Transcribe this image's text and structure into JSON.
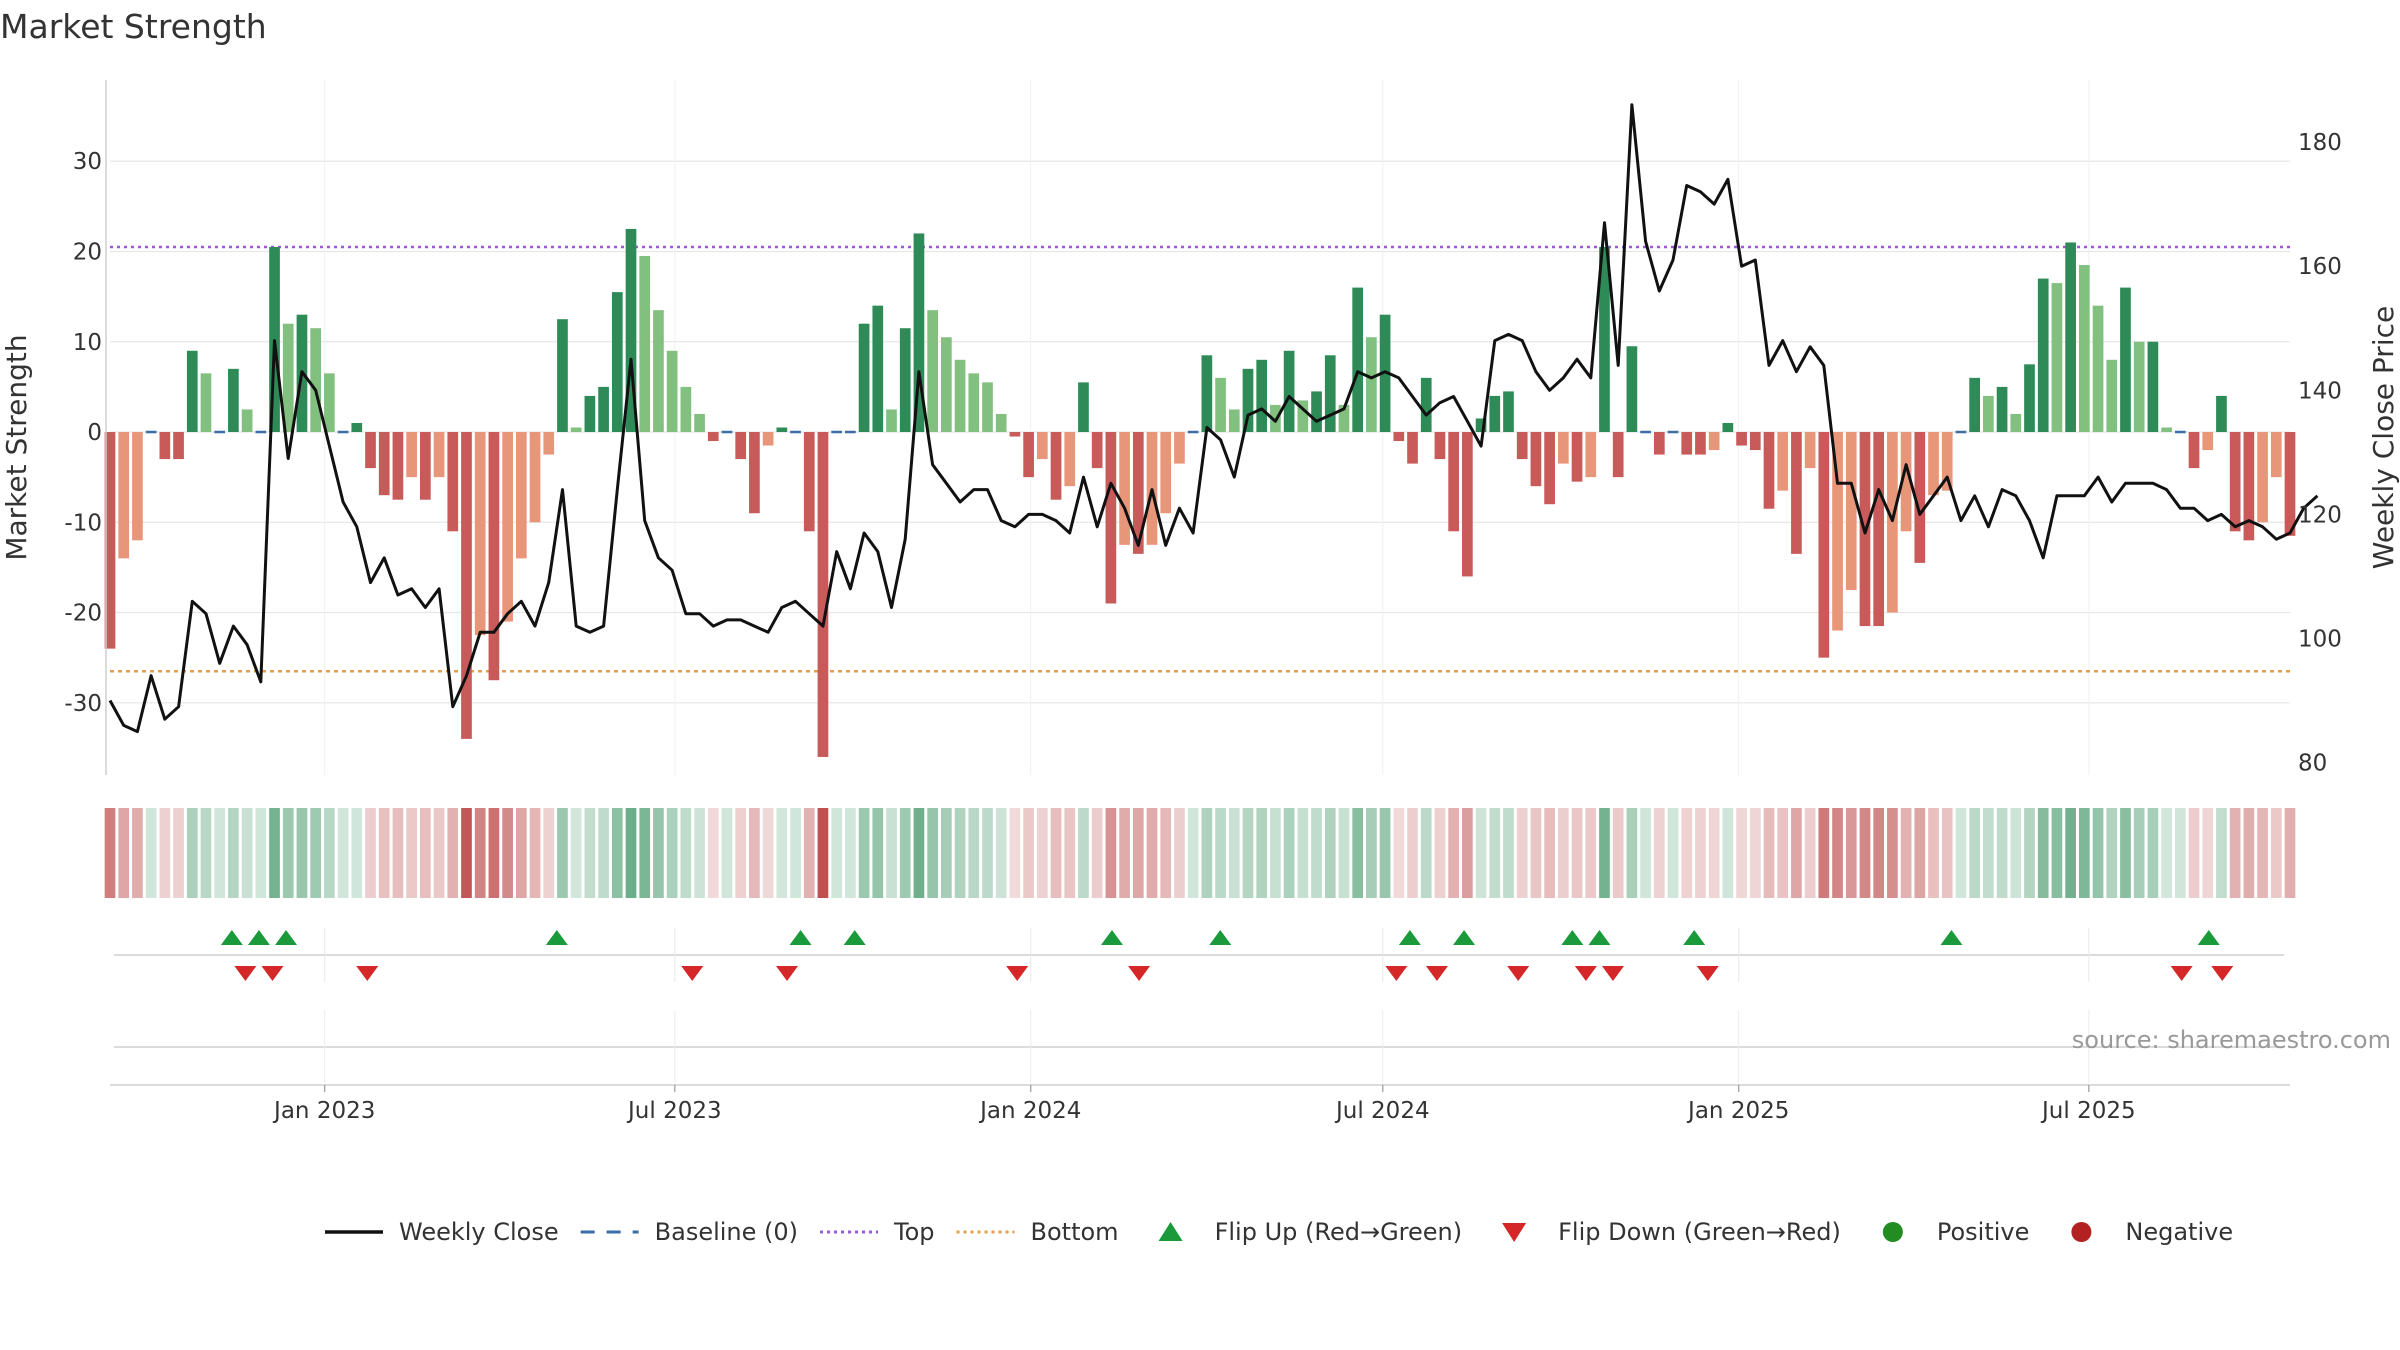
{
  "title": "Market Strength",
  "source": "source: sharemaestro.com",
  "chart_data": {
    "type": "bar",
    "title": "Market Strength",
    "ylabel_left": "Market Strength",
    "ylabel_right": "Weekly Close Price",
    "ylim_left": [
      -38,
      39
    ],
    "ylim_right": [
      78,
      190
    ],
    "yticks_left": [
      30,
      20,
      10,
      0,
      -10,
      -20,
      -30
    ],
    "yticks_right": [
      180,
      160,
      140,
      120,
      100,
      80
    ],
    "top_line": 20.5,
    "bottom_line": -26.5,
    "grid": "horizontal",
    "legend_position": "bottom",
    "x_range": [
      "2022-09-12",
      "2025-10-13"
    ],
    "x_ticks": [
      {
        "date": "2023-01-01",
        "label": "Jan 2023"
      },
      {
        "date": "2023-07-01",
        "label": "Jul 2023"
      },
      {
        "date": "2024-01-01",
        "label": "Jan 2024"
      },
      {
        "date": "2024-07-01",
        "label": "Jul 2024"
      },
      {
        "date": "2025-01-01",
        "label": "Jan 2025"
      },
      {
        "date": "2025-07-01",
        "label": "Jul 2025"
      }
    ],
    "colors": {
      "strong_pos": "#2e8b57",
      "weak_pos": "#82c07f",
      "strong_neg": "#c85a5a",
      "weak_neg": "#e8967a",
      "baseline": "#3a6ea5",
      "top": "#9b59d6",
      "bottom": "#e0a050",
      "close": "#111111",
      "flip_up": "#1a9a3a",
      "flip_down": "#d62728",
      "positive": "#228b22",
      "negative": "#b22222"
    },
    "strength": [
      -24,
      -14,
      -12,
      0,
      -3,
      -3,
      9,
      6.5,
      0,
      7,
      2.5,
      0,
      20.5,
      12,
      13,
      11.5,
      6.5,
      0,
      1,
      -4,
      -7,
      -7.5,
      -5,
      -7.5,
      -5,
      -11,
      -34,
      -22.5,
      -27.5,
      -21,
      -14,
      -10,
      -2.5,
      12.5,
      0.5,
      4,
      5,
      15.5,
      22.5,
      19.5,
      13.5,
      9,
      5,
      2,
      -1,
      0,
      -3,
      -9,
      -1.5,
      0.5,
      0,
      -11,
      -36,
      0,
      0,
      12,
      14,
      2.5,
      11.5,
      22,
      13.5,
      10.5,
      8,
      6.5,
      5.5,
      2,
      -0.5,
      -5,
      -3,
      -7.5,
      -6,
      5.5,
      -4,
      -19,
      -12.5,
      -13.5,
      -12.5,
      -9,
      -3.5,
      0,
      8.5,
      6,
      2.5,
      7,
      8,
      3,
      9,
      3.5,
      4.5,
      8.5,
      3,
      16,
      10.5,
      13,
      -1,
      -3.5,
      6,
      -3,
      -11,
      -16,
      1.5,
      4,
      4.5,
      -3,
      -6,
      -8,
      -3.5,
      -5.5,
      -5,
      20.5,
      -5,
      9.5,
      0,
      -2.5,
      0,
      -2.5,
      -2.5,
      -2,
      1,
      -1.5,
      -2,
      -8.5,
      -6.5,
      -13.5,
      -4,
      -25,
      -22,
      -17.5,
      -21.5,
      -21.5,
      -20,
      -11,
      -14.5,
      -7,
      -6.5,
      0,
      6,
      4,
      5,
      2,
      7.5,
      17,
      16.5,
      21,
      18.5,
      14,
      8,
      16,
      10,
      10,
      0.5,
      0,
      -4,
      -2,
      4,
      -11,
      -12,
      -10,
      -5,
      -11.5
    ],
    "weekly_close": [
      90,
      86,
      85,
      94,
      87,
      89,
      106,
      104,
      96,
      102,
      99,
      93,
      148,
      129,
      143,
      140,
      131,
      122,
      118,
      109,
      113,
      107,
      108,
      105,
      108,
      89,
      94,
      101,
      101,
      104,
      106,
      102,
      109,
      124,
      102,
      101,
      102,
      124,
      145,
      119,
      113,
      111,
      104,
      104,
      102,
      103,
      103,
      102,
      101,
      105,
      106,
      104,
      102,
      114,
      108,
      117,
      114,
      105,
      116,
      143,
      128,
      125,
      122,
      124,
      124,
      119,
      118,
      120,
      120,
      119,
      117,
      126,
      118,
      125,
      121,
      115,
      124,
      115,
      121,
      117,
      134,
      132,
      126,
      136,
      137,
      135,
      139,
      137,
      135,
      136,
      137,
      143,
      142,
      143,
      142,
      139,
      136,
      138,
      139,
      135,
      131,
      148,
      149,
      148,
      143,
      140,
      142,
      145,
      142,
      167,
      144,
      186,
      164,
      156,
      161,
      173,
      172,
      170,
      174,
      160,
      161,
      144,
      148,
      143,
      147,
      144,
      125,
      125,
      117,
      124,
      119,
      128,
      120,
      123,
      126,
      119,
      123,
      118,
      124,
      123,
      119,
      113,
      123,
      123,
      123,
      126,
      122,
      125,
      125,
      125,
      124,
      121,
      121,
      119,
      120,
      118,
      119,
      118,
      116,
      117,
      121,
      123
    ],
    "flip_up_dates": [
      "2022-11-14",
      "2022-11-28",
      "2022-12-12",
      "2023-05-01",
      "2023-09-04",
      "2023-10-02",
      "2024-02-12",
      "2024-04-08",
      "2024-07-15",
      "2024-08-12",
      "2024-10-07",
      "2024-10-21",
      "2024-12-09",
      "2025-04-21",
      "2025-09-01"
    ],
    "flip_down_dates": [
      "2022-11-21",
      "2022-12-05",
      "2023-01-23",
      "2023-07-10",
      "2023-08-28",
      "2023-12-25",
      "2024-02-26",
      "2024-07-08",
      "2024-07-29",
      "2024-09-09",
      "2024-10-14",
      "2024-10-28",
      "2024-12-16",
      "2025-08-18",
      "2025-09-08"
    ]
  },
  "legend": [
    {
      "label": "Weekly Close",
      "icon": "line-solid"
    },
    {
      "label": "Baseline (0)",
      "icon": "line-dashed"
    },
    {
      "label": "Top",
      "icon": "line-dotted"
    },
    {
      "label": "Bottom",
      "icon": "line-dotted"
    },
    {
      "label": "Flip Up (Red→Green)",
      "icon": "triangle-up"
    },
    {
      "label": "Flip Down (Green→Red)",
      "icon": "triangle-down"
    },
    {
      "label": "Positive",
      "icon": "circle"
    },
    {
      "label": "Negative",
      "icon": "circle"
    }
  ]
}
